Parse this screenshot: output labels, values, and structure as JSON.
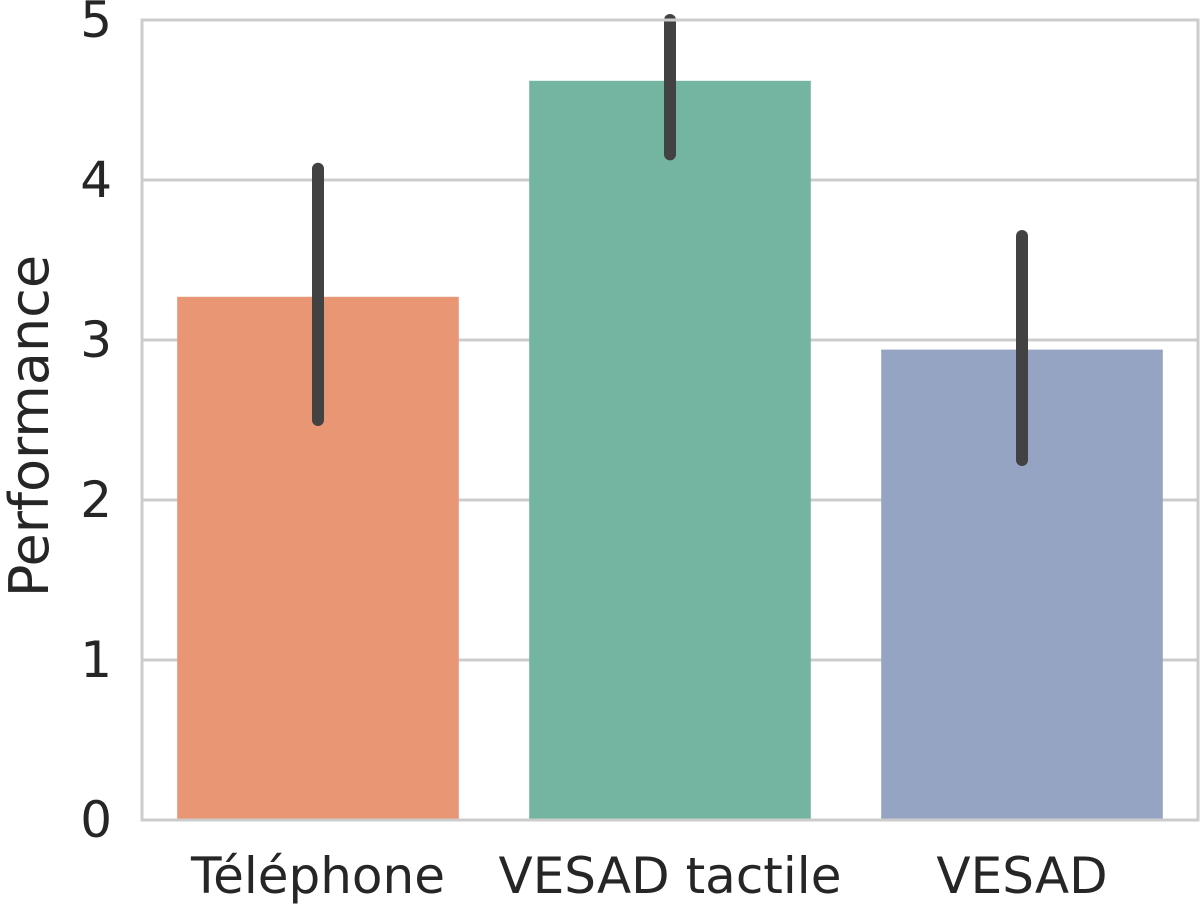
{
  "chart_data": {
    "type": "bar",
    "title": "",
    "xlabel": "",
    "ylabel": "Performance",
    "categories": [
      "Téléphone",
      "VESAD tactile",
      "VESAD"
    ],
    "values": [
      3.27,
      4.62,
      2.94
    ],
    "error_low": [
      2.5,
      4.16,
      2.25
    ],
    "error_high": [
      4.07,
      5.0,
      3.65
    ],
    "ylim": [
      0,
      5
    ],
    "yticks": [
      0,
      1,
      2,
      3,
      4,
      5
    ],
    "grid": "horizontal",
    "bar_colors": [
      "#e99675",
      "#73b5a1",
      "#95a4c3"
    ],
    "error_color": "#424242"
  }
}
